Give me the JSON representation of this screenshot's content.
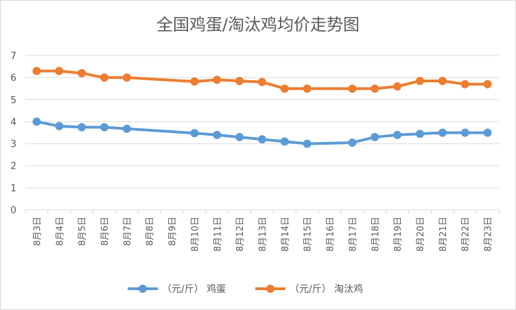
{
  "chart_data": {
    "type": "line",
    "title": "全国鸡蛋/淘汰鸡均价走势图",
    "xlabel": "",
    "ylabel": "",
    "ylim": [
      0,
      7
    ],
    "yticks": [
      "0",
      "1",
      "2",
      "3",
      "4",
      "5",
      "6",
      "7"
    ],
    "grid": true,
    "legend_position": "bottom",
    "categories": [
      "8月3日",
      "8月4日",
      "8月5日",
      "8月6日",
      "8月7日",
      "8月8日",
      "8月9日",
      "8月10日",
      "8月11日",
      "8月12日",
      "8月13日",
      "8月14日",
      "8月15日",
      "8月16日",
      "8月17日",
      "8月18日",
      "8月19日",
      "8月20日",
      "8月21日",
      "8月22日",
      "8月23日"
    ],
    "series": [
      {
        "name": "（元/斤） 鸡蛋",
        "color": "#5b9bd5",
        "values": [
          4.0,
          3.8,
          3.75,
          3.75,
          3.68,
          null,
          null,
          3.48,
          3.4,
          3.3,
          3.2,
          3.1,
          3.0,
          null,
          3.05,
          3.3,
          3.4,
          3.45,
          3.5,
          3.5,
          3.5
        ]
      },
      {
        "name": "（元/斤） 淘汰鸡",
        "color": "#ed7d31",
        "values": [
          6.3,
          6.3,
          6.2,
          6.0,
          6.0,
          null,
          null,
          5.82,
          5.9,
          5.85,
          5.8,
          5.5,
          5.5,
          null,
          5.5,
          5.5,
          5.6,
          5.85,
          5.85,
          5.7,
          5.7
        ]
      }
    ]
  }
}
